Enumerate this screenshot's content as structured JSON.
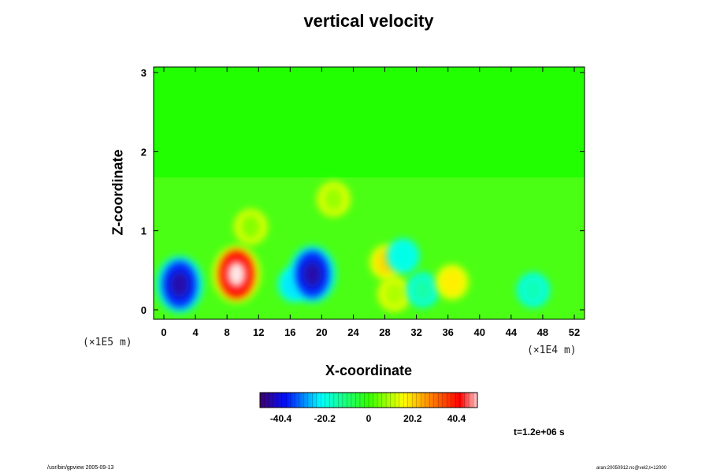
{
  "chart_data": {
    "type": "heatmap",
    "title": "vertical velocity",
    "xlabel": "X-coordinate",
    "ylabel": "Z-coordinate",
    "x_ticks": [
      "0",
      "4",
      "8",
      "12",
      "16",
      "20",
      "24",
      "28",
      "32",
      "36",
      "40",
      "44",
      "48",
      "52"
    ],
    "y_ticks": [
      "0",
      "1",
      "2",
      "3"
    ],
    "x_units": "(×1E4 m)",
    "y_units": "(×1E5 m)",
    "xlim": [
      0,
      52
    ],
    "ylim": [
      0,
      3.1
    ],
    "colorbar": {
      "ticks": [
        "-40.4",
        "-20.2",
        "0",
        "20.2",
        "40.4"
      ],
      "range": [
        -50,
        50
      ]
    },
    "features": [
      {
        "x": 2.0,
        "z": 0.32,
        "value": -45
      },
      {
        "x": 9.2,
        "z": 0.45,
        "value": 52
      },
      {
        "x": 16.5,
        "z": 0.32,
        "value": -30
      },
      {
        "x": 18.8,
        "z": 0.45,
        "value": -45
      },
      {
        "x": 28.2,
        "z": 0.6,
        "value": 25
      },
      {
        "x": 29.2,
        "z": 0.2,
        "value": 12
      },
      {
        "x": 30.3,
        "z": 0.68,
        "value": -25
      },
      {
        "x": 32.8,
        "z": 0.25,
        "value": -18
      },
      {
        "x": 36.5,
        "z": 0.35,
        "value": 22
      },
      {
        "x": 46.8,
        "z": 0.25,
        "value": -20
      },
      {
        "x": 21.5,
        "z": 1.4,
        "value": 10
      },
      {
        "x": 11.0,
        "z": 1.05,
        "value": 8
      }
    ]
  },
  "annotations": {
    "time": "t=1.2e+06 s",
    "footer_left": "/usr/bin/gpview 2005-09-13",
    "footer_right": "aran:20050912.nc@vel2,t=12000"
  }
}
